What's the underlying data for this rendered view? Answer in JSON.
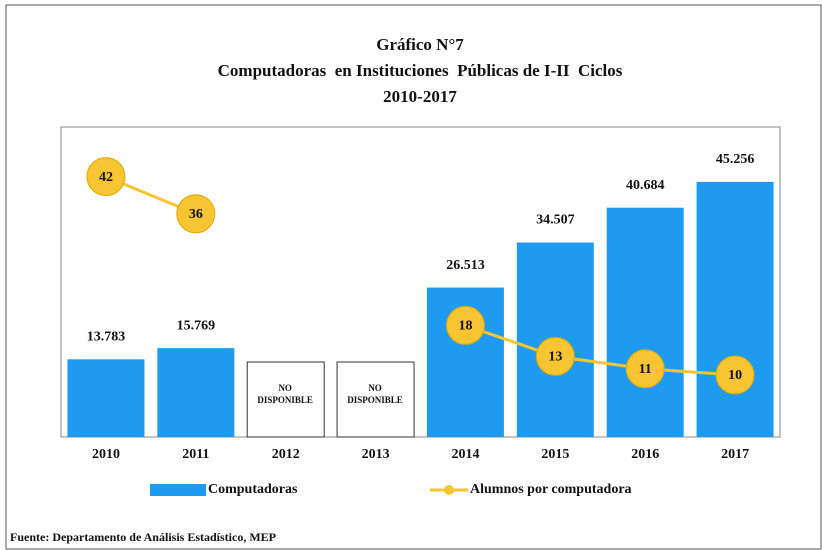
{
  "chart_data": {
    "type": "bar",
    "title": [
      "Gráfico N°7",
      "Computadoras  en Instituciones  Públicas de I-II  Ciclos",
      "2010-2017"
    ],
    "categories": [
      "2010",
      "2011",
      "2012",
      "2013",
      "2014",
      "2015",
      "2016",
      "2017"
    ],
    "series": [
      {
        "name": "Computadoras",
        "type": "bar",
        "color": "#1e9bf0",
        "values": [
          13783,
          15769,
          null,
          null,
          26513,
          34507,
          40684,
          45256
        ],
        "value_labels": [
          "13.783",
          "15.769",
          null,
          null,
          "26.513",
          "34.507",
          "40.684",
          "45.256"
        ]
      },
      {
        "name": "Alumnos por computadora",
        "type": "line",
        "axis": "y2",
        "color": "#f7c531",
        "values": [
          42,
          36,
          null,
          null,
          18,
          13,
          11,
          10
        ]
      }
    ],
    "annotations": [
      {
        "x": "2012",
        "text": "NO DISPONIBLE"
      },
      {
        "x": "2013",
        "text": "NO DISPONIBLE"
      }
    ],
    "ylim": [
      0,
      55000
    ],
    "y2lim": [
      0,
      50
    ],
    "legend": "bottom",
    "source": "Fuente: Departamento de Análisis Estadístico, MEP"
  }
}
